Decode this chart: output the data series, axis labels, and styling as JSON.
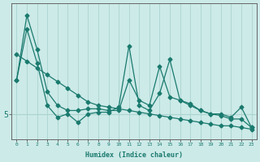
{
  "xlabel": "Humidex (Indice chaleur)",
  "x": [
    0,
    1,
    2,
    3,
    4,
    5,
    6,
    7,
    8,
    9,
    10,
    11,
    12,
    13,
    14,
    15,
    16,
    17,
    18,
    19,
    20,
    21,
    22,
    23
  ],
  "line_max": [
    7.0,
    10.8,
    8.8,
    6.3,
    5.5,
    5.2,
    5.2,
    5.3,
    5.3,
    5.2,
    5.2,
    7.0,
    5.8,
    5.5,
    7.8,
    6.0,
    5.8,
    5.6,
    5.2,
    5.0,
    5.0,
    4.8,
    5.4,
    4.2
  ],
  "line_mean": [
    7.0,
    10.0,
    8.0,
    5.5,
    4.8,
    5.0,
    4.5,
    5.0,
    5.1,
    5.1,
    5.4,
    9.0,
    5.5,
    5.2,
    6.2,
    8.2,
    5.8,
    5.5,
    5.2,
    5.0,
    4.9,
    4.7,
    4.7,
    4.2
  ],
  "line_trend": [
    8.5,
    8.1,
    7.7,
    7.3,
    6.9,
    6.5,
    6.1,
    5.7,
    5.5,
    5.4,
    5.3,
    5.2,
    5.1,
    5.0,
    4.9,
    4.8,
    4.7,
    4.6,
    4.5,
    4.4,
    4.3,
    4.3,
    4.2,
    4.1
  ],
  "ytick_value": 5.0,
  "ytick_label": "5",
  "ylim_min": 3.5,
  "ylim_max": 11.5,
  "bg_color": "#cceae8",
  "line_color": "#1a7a6e",
  "grid_color": "#aad4d0",
  "axis_color": "#666666"
}
